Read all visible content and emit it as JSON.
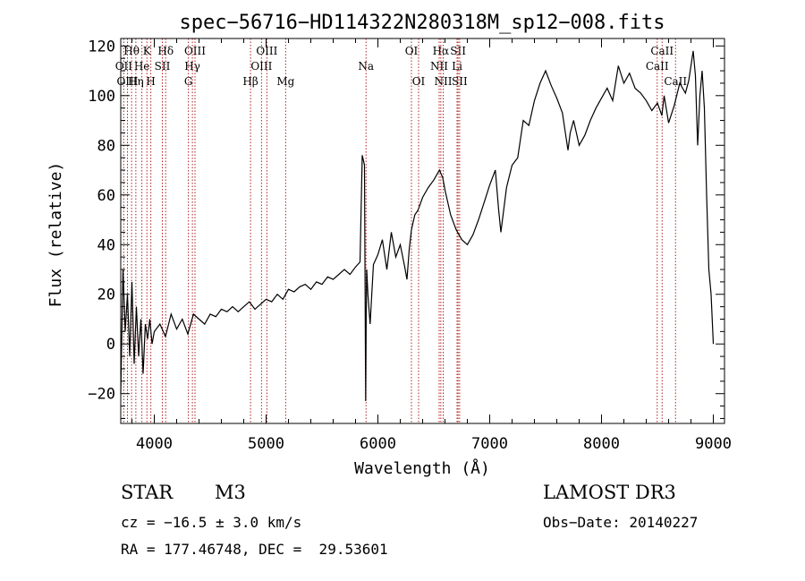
{
  "chart_data": {
    "type": "line",
    "title": "spec−56716−HD114322N280318M_sp12−008.fits",
    "xlabel": "Wavelength (Å)",
    "ylabel": "Flux (relative)",
    "xlim": [
      3700,
      9100
    ],
    "ylim": [
      -32,
      123
    ],
    "x_ticks": [
      4000,
      5000,
      6000,
      7000,
      8000,
      9000
    ],
    "y_ticks": [
      -20,
      0,
      20,
      40,
      60,
      80,
      100,
      120
    ],
    "y_tick_labels": [
      "−20",
      "0",
      "20",
      "40",
      "60",
      "80",
      "100",
      "120"
    ],
    "series": [
      {
        "name": "spectrum",
        "x": [
          3700,
          3720,
          3740,
          3760,
          3780,
          3800,
          3820,
          3840,
          3860,
          3880,
          3900,
          3920,
          3940,
          3960,
          3980,
          4000,
          4050,
          4100,
          4150,
          4200,
          4250,
          4300,
          4350,
          4400,
          4450,
          4500,
          4550,
          4600,
          4650,
          4700,
          4750,
          4800,
          4850,
          4900,
          4950,
          5000,
          5050,
          5100,
          5150,
          5200,
          5250,
          5300,
          5350,
          5400,
          5450,
          5500,
          5550,
          5600,
          5650,
          5700,
          5750,
          5800,
          5840,
          5860,
          5880,
          5890,
          5895,
          5900,
          5910,
          5930,
          5960,
          6000,
          6040,
          6080,
          6120,
          6160,
          6200,
          6240,
          6260,
          6280,
          6300,
          6330,
          6360,
          6400,
          6450,
          6500,
          6550,
          6580,
          6600,
          6620,
          6650,
          6700,
          6750,
          6800,
          6850,
          6900,
          6950,
          7000,
          7050,
          7080,
          7100,
          7150,
          7200,
          7250,
          7300,
          7350,
          7400,
          7450,
          7500,
          7550,
          7600,
          7650,
          7700,
          7720,
          7750,
          7800,
          7850,
          7900,
          7950,
          8000,
          8050,
          8100,
          8150,
          8200,
          8250,
          8300,
          8350,
          8400,
          8450,
          8500,
          8540,
          8560,
          8600,
          8650,
          8700,
          8750,
          8780,
          8800,
          8820,
          8840,
          8860,
          8880,
          8900,
          8920,
          8940,
          8960,
          8980,
          9000
        ],
        "y": [
          -20,
          30,
          5,
          20,
          -5,
          25,
          -8,
          15,
          -5,
          10,
          -12,
          8,
          2,
          10,
          0,
          5,
          8,
          3,
          12,
          6,
          10,
          4,
          12,
          10,
          8,
          12,
          11,
          14,
          13,
          15,
          13,
          15,
          17,
          14,
          16,
          18,
          17,
          20,
          18,
          22,
          21,
          23,
          24,
          22,
          25,
          24,
          27,
          26,
          28,
          30,
          28,
          31,
          33,
          76,
          72,
          -23,
          10,
          30,
          20,
          8,
          32,
          36,
          42,
          30,
          45,
          35,
          40,
          31,
          26,
          38,
          46,
          52,
          54,
          59,
          63,
          66,
          70,
          67,
          62,
          58,
          52,
          46,
          42,
          40,
          44,
          50,
          57,
          64,
          70,
          54,
          45,
          63,
          72,
          75,
          90,
          88,
          98,
          105,
          110,
          104,
          99,
          93,
          78,
          85,
          90,
          80,
          84,
          90,
          95,
          99,
          103,
          98,
          112,
          105,
          109,
          103,
          101,
          98,
          94,
          97,
          92,
          100,
          89,
          96,
          105,
          101,
          106,
          112,
          118,
          108,
          80,
          100,
          110,
          95,
          60,
          30,
          20,
          0
        ]
      }
    ],
    "emission_lines": [
      {
        "label": "Hθ",
        "wavelength": 3797,
        "row": 1
      },
      {
        "label": "OII",
        "wavelength": 3727,
        "row": 2
      },
      {
        "label": "OIII",
        "wavelength": 3760,
        "row": 3
      },
      {
        "label": "K",
        "wavelength": 3934,
        "row": 1
      },
      {
        "label": "He",
        "wavelength": 3889,
        "row": 2
      },
      {
        "label": "Hη",
        "wavelength": 3835,
        "row": 3
      },
      {
        "label": "Hδ",
        "wavelength": 4102,
        "row": 1
      },
      {
        "label": "SII",
        "wavelength": 4072,
        "row": 2
      },
      {
        "label": "H",
        "wavelength": 3969,
        "row": 3
      },
      {
        "label": "OIII",
        "wavelength": 4364,
        "row": 1
      },
      {
        "label": "Hγ",
        "wavelength": 4341,
        "row": 2
      },
      {
        "label": "G",
        "wavelength": 4305,
        "row": 3
      },
      {
        "label": "OIII",
        "wavelength": 5007,
        "row": 1
      },
      {
        "label": "OIII",
        "wavelength": 4959,
        "row": 2
      },
      {
        "label": "Hβ",
        "wavelength": 4861,
        "row": 3
      },
      {
        "label": "Mg",
        "wavelength": 5175,
        "row": 3
      },
      {
        "label": "Na",
        "wavelength": 5894,
        "row": 2
      },
      {
        "label": "OI",
        "wavelength": 6300,
        "row": 1
      },
      {
        "label": "OI",
        "wavelength": 6364,
        "row": 3
      },
      {
        "label": "Hα",
        "wavelength": 6563,
        "row": 1
      },
      {
        "label": "SII",
        "wavelength": 6717,
        "row": 1
      },
      {
        "label": "NII",
        "wavelength": 6548,
        "row": 2
      },
      {
        "label": "Li",
        "wavelength": 6708,
        "row": 2
      },
      {
        "label": "NII",
        "wavelength": 6584,
        "row": 3
      },
      {
        "label": "SII",
        "wavelength": 6731,
        "row": 3
      },
      {
        "label": "CaII",
        "wavelength": 8542,
        "row": 1
      },
      {
        "label": "CaII",
        "wavelength": 8498,
        "row": 2
      },
      {
        "label": "CaII",
        "wavelength": 8662,
        "row": 3
      }
    ]
  },
  "info": {
    "object_class": "STAR",
    "subclass": "M3",
    "survey": "LAMOST DR3",
    "redshift_line": "cz = −16.5 ± 3.0 km/s",
    "obs_date_line": "Obs−Date: 20140227",
    "coords_line": "RA = 177.46748, DEC =  29.53601"
  }
}
